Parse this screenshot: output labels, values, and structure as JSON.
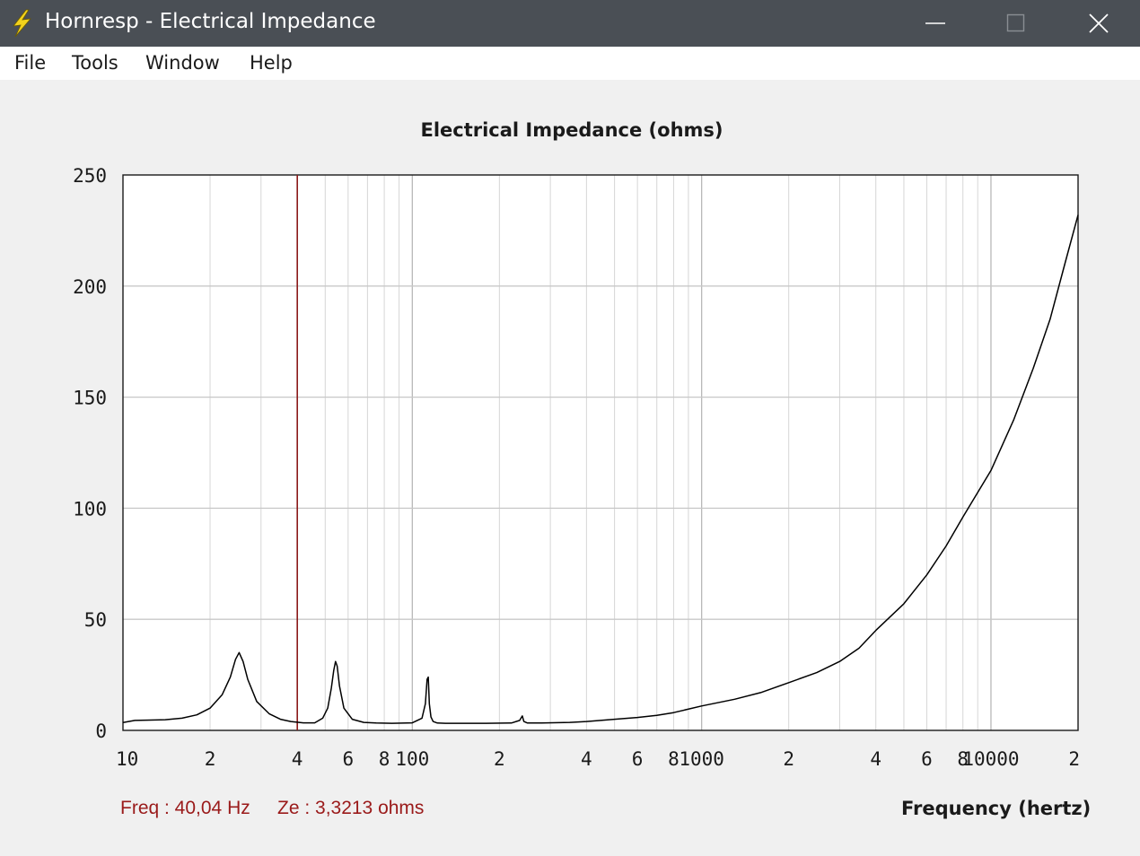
{
  "window": {
    "title": "Hornresp - Electrical Impedance",
    "buttons": [
      "minimize-icon",
      "maximize-icon",
      "close-icon"
    ],
    "app_icon": "lightning-bolt-icon"
  },
  "menu": {
    "items": [
      "File",
      "Tools",
      "Window",
      "Help"
    ]
  },
  "status": {
    "freq": "Freq : 40,04 Hz",
    "ze": "Ze : 3,3213 ohms"
  },
  "colors": {
    "titlebar": "#4a4f55",
    "cursor_line": "#8b1a1a",
    "status_text": "#9a1a1a",
    "curve": "#000000",
    "grid": "#c8c8c8"
  },
  "chart_data": {
    "type": "line",
    "title": "Electrical Impedance (ohms)",
    "xlabel": "Frequency (hertz)",
    "ylabel": "",
    "x_scale": "log",
    "xlim": [
      10,
      20000
    ],
    "ylim": [
      0,
      250
    ],
    "grid": true,
    "x_tick_labels": [
      {
        "value": 10,
        "label": "10"
      },
      {
        "value": 20,
        "label": "2"
      },
      {
        "value": 40,
        "label": "4"
      },
      {
        "value": 60,
        "label": "6"
      },
      {
        "value": 80,
        "label": "8"
      },
      {
        "value": 100,
        "label": "100"
      },
      {
        "value": 200,
        "label": "2"
      },
      {
        "value": 400,
        "label": "4"
      },
      {
        "value": 600,
        "label": "6"
      },
      {
        "value": 800,
        "label": "8"
      },
      {
        "value": 1000,
        "label": "1000"
      },
      {
        "value": 2000,
        "label": "2"
      },
      {
        "value": 4000,
        "label": "4"
      },
      {
        "value": 6000,
        "label": "6"
      },
      {
        "value": 8000,
        "label": "8"
      },
      {
        "value": 10000,
        "label": "10000"
      },
      {
        "value": 20000,
        "label": "2"
      }
    ],
    "y_ticks": [
      0,
      50,
      100,
      150,
      200,
      250
    ],
    "cursor": {
      "frequency": 40.04,
      "impedance": 3.3213
    },
    "series": [
      {
        "x": [
          10,
          11,
          12,
          14,
          16,
          18,
          20,
          22,
          23.5,
          24.5,
          25.2,
          26,
          27,
          29,
          32,
          35,
          38,
          42,
          46,
          49,
          51,
          52.5,
          53.5,
          54.3,
          55,
          56,
          58,
          62,
          68,
          75,
          85,
          100,
          108,
          111,
          112.5,
          113.5,
          114.5,
          116,
          118,
          122,
          130,
          150,
          180,
          220,
          235,
          240,
          243,
          250,
          280,
          350,
          400,
          500,
          600,
          700,
          800,
          1000,
          1300,
          1600,
          2000,
          2500,
          3000,
          3500,
          4000,
          5000,
          6000,
          7000,
          8000,
          10000,
          12000,
          14000,
          16000,
          18000,
          20000
        ],
        "y": [
          3.5,
          4.5,
          4.6,
          4.8,
          5.5,
          7,
          10,
          16,
          24,
          32,
          35,
          31,
          23,
          13,
          7.5,
          5,
          4,
          3.4,
          3.4,
          5.5,
          10,
          19,
          27,
          31,
          29,
          20,
          10,
          5,
          3.6,
          3.3,
          3.2,
          3.4,
          5.5,
          12,
          23,
          24,
          12,
          6,
          4,
          3.3,
          3.2,
          3.2,
          3.2,
          3.3,
          4.5,
          6.5,
          4,
          3.3,
          3.3,
          3.6,
          4,
          5,
          5.8,
          6.8,
          8,
          11,
          14,
          17,
          21.5,
          26,
          31,
          37,
          45,
          57,
          70,
          83,
          96,
          117,
          140,
          163,
          185,
          210,
          232
        ]
      }
    ]
  }
}
